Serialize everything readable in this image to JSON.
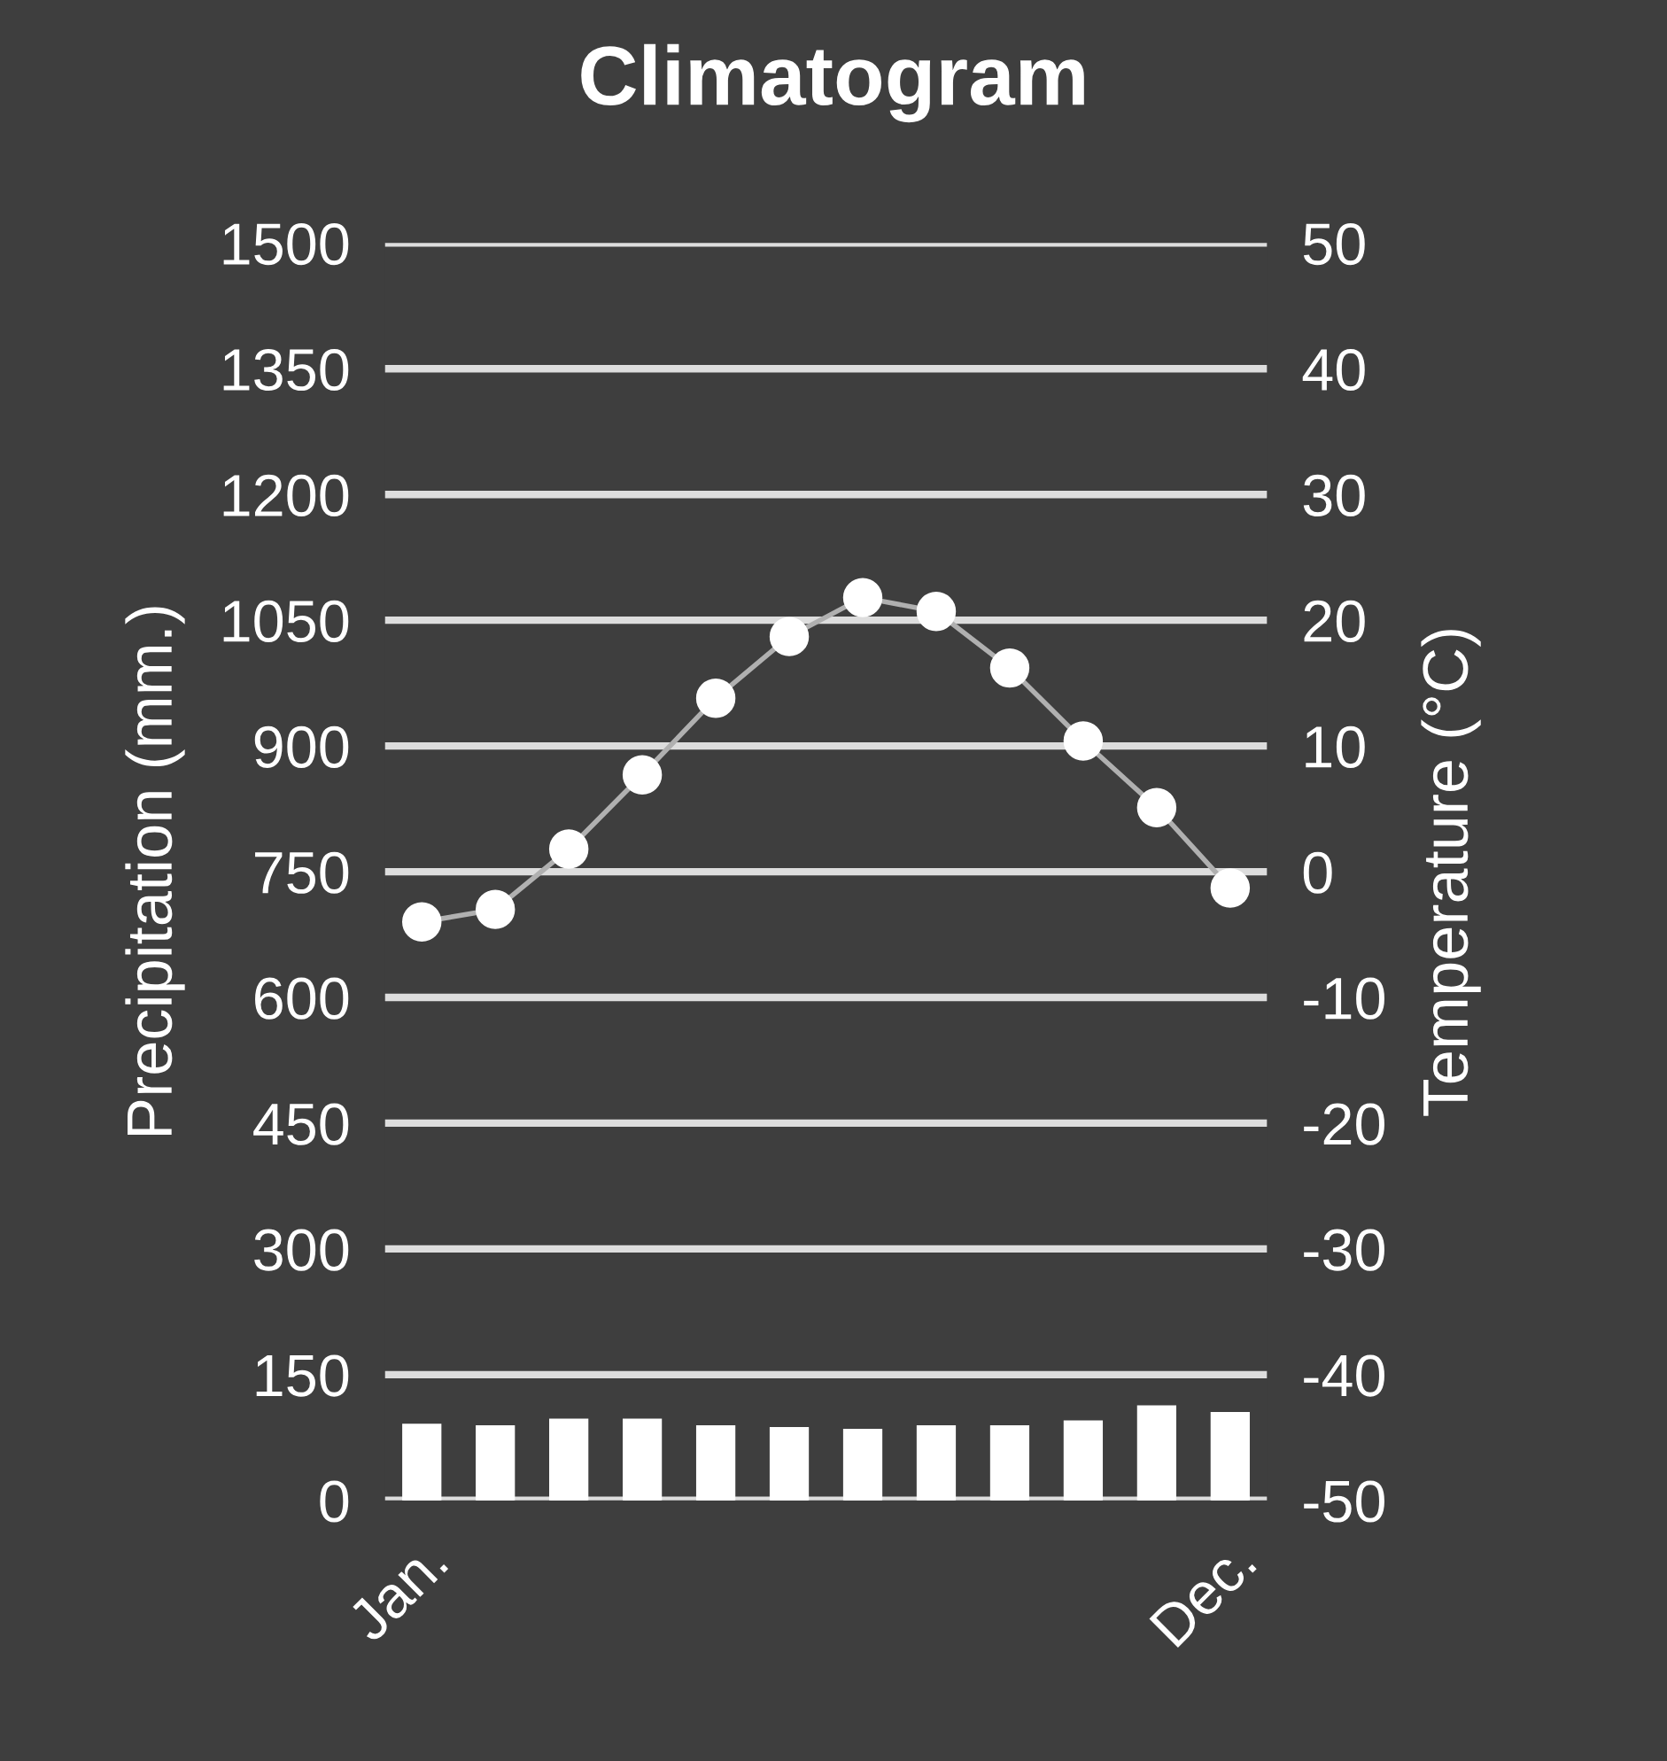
{
  "chart_data": {
    "type": "bar",
    "title": "Climatogram",
    "ylabel": "Precipitation (mm.)",
    "y2label": "Temperature (°C)",
    "categories": [
      "Jan.",
      null,
      null,
      null,
      null,
      null,
      null,
      null,
      null,
      null,
      null,
      "Dec."
    ],
    "series": [
      {
        "color": "#ffffff",
        "values": [
          90,
          88,
          96,
          96,
          88,
          86,
          84,
          88,
          88,
          94,
          112,
          104
        ]
      },
      {
        "type": "line",
        "axis": "y2",
        "color": "#ffffff",
        "values": [
          -4,
          -3,
          1.8,
          7.7,
          13.8,
          18.7,
          21.8,
          20.7,
          16.2,
          10.4,
          5.1,
          -1.3
        ]
      }
    ],
    "ylim": [
      0,
      1500
    ],
    "yticks": [
      0,
      150,
      300,
      450,
      600,
      750,
      900,
      1050,
      1200,
      1350,
      1500
    ],
    "y2lim": [
      -50,
      50
    ],
    "y2ticks": [
      -50,
      -40,
      -30,
      -20,
      -10,
      0,
      10,
      20,
      30,
      40,
      50
    ],
    "grid": "y",
    "marker": "circle",
    "line_style": "solid",
    "legend": false
  }
}
